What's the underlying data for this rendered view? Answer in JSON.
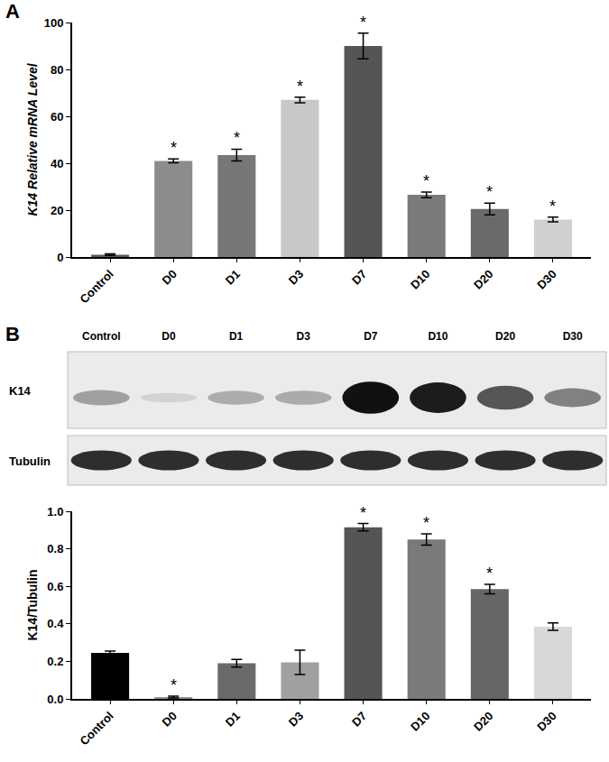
{
  "panel_labels": [
    "A",
    "B"
  ],
  "blot": {
    "lanes": [
      "Control",
      "D0",
      "D1",
      "D3",
      "D7",
      "D10",
      "D20",
      "D30"
    ],
    "rows": [
      "K14",
      "Tubulin"
    ]
  },
  "chart_data": [
    {
      "type": "bar",
      "y_label": "K14 Relative mRNA Level",
      "categories": [
        "Control",
        "D0",
        "D1",
        "D3",
        "D7",
        "D10",
        "D20",
        "D30"
      ],
      "values": [
        1,
        41,
        43.5,
        67,
        90,
        26.5,
        20.5,
        16
      ],
      "errors": [
        0.3,
        0.8,
        2.5,
        1.2,
        5.5,
        1.2,
        2.5,
        1
      ],
      "colors": [
        "#5a5a5a",
        "#8c8c8c",
        "#777777",
        "#c8c8c8",
        "#555555",
        "#7a7a7a",
        "#6a6a6a",
        "#d0d0d0"
      ],
      "annotations": [
        null,
        "*",
        "*",
        "*",
        "*",
        "*",
        "*",
        "*"
      ],
      "ylim": [
        0,
        100
      ],
      "yticks": [
        0,
        20,
        40,
        60,
        80,
        100
      ],
      "grid": false
    },
    {
      "type": "bar",
      "y_label": "K14/Tubulin",
      "categories": [
        "Control",
        "D0",
        "D1",
        "D3",
        "D7",
        "D10",
        "D20",
        "D30"
      ],
      "values": [
        0.245,
        0.01,
        0.19,
        0.195,
        0.915,
        0.85,
        0.585,
        0.385
      ],
      "errors": [
        0.01,
        0.005,
        0.02,
        0.065,
        0.02,
        0.03,
        0.025,
        0.02
      ],
      "colors": [
        "#000000",
        "#909090",
        "#6a6a6a",
        "#a0a0a0",
        "#555555",
        "#7a7a7a",
        "#666666",
        "#d8d8d8"
      ],
      "annotations": [
        null,
        "*",
        null,
        null,
        "*",
        "*",
        "*",
        null
      ],
      "ylim": [
        0,
        1.0
      ],
      "yticks": [
        {
          "value": 0,
          "label": "0.0"
        },
        0.2,
        0.4,
        0.6,
        0.8,
        {
          "value": 1,
          "label": "1.0"
        }
      ],
      "grid": false
    }
  ]
}
